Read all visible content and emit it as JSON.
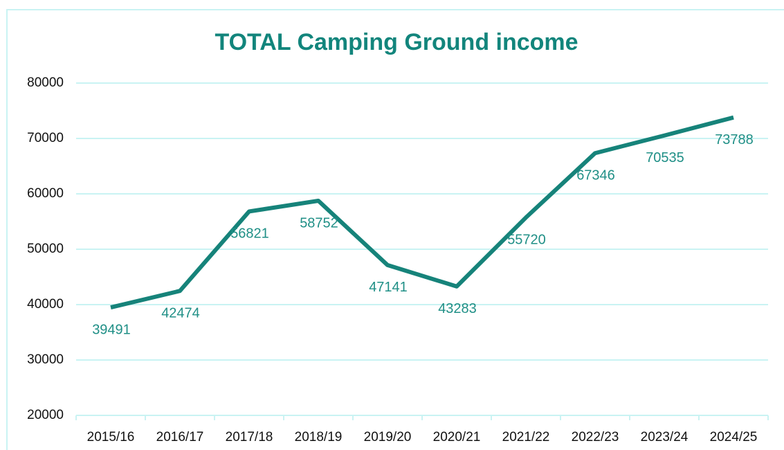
{
  "chart_data": {
    "type": "line",
    "title": "TOTAL Camping Ground income",
    "categories": [
      "2015/16",
      "2016/17",
      "2017/18",
      "2018/19",
      "2019/20",
      "2020/21",
      "2021/22",
      "2022/23",
      "2023/24",
      "2024/25"
    ],
    "values": [
      39491,
      42474,
      56821,
      58752,
      47141,
      43283,
      55720,
      67346,
      70535,
      73788
    ],
    "color": "#16837a",
    "ylim": [
      20000,
      80000
    ],
    "yticks": [
      20000,
      30000,
      40000,
      50000,
      60000,
      70000,
      80000
    ],
    "grid": true
  }
}
